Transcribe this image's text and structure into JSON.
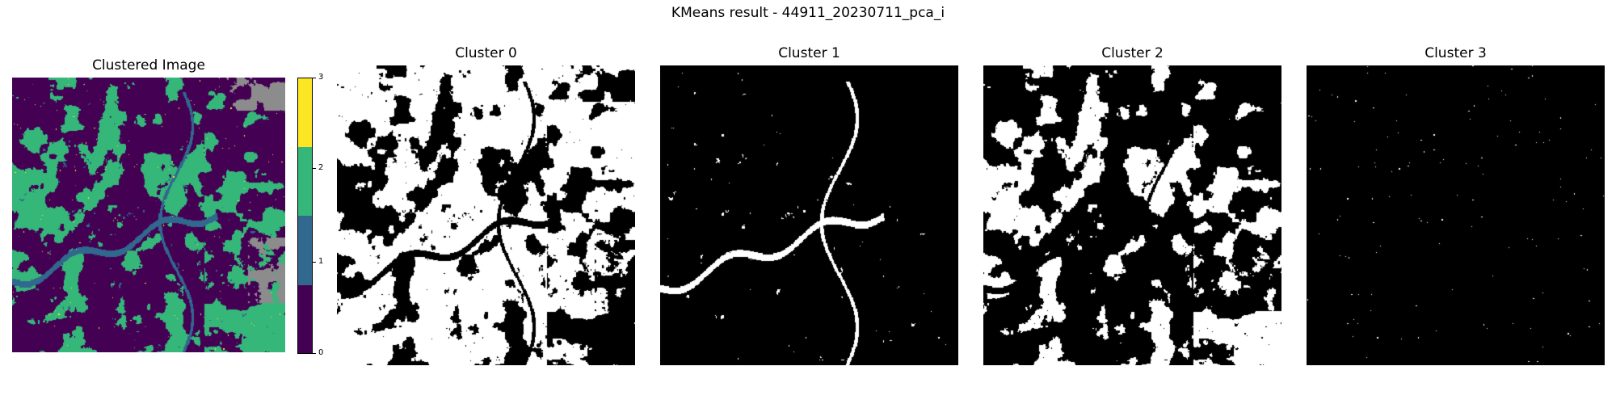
{
  "figure": {
    "suptitle": "KMeans result - 44911_20230711_pca_i"
  },
  "clustered": {
    "title": "Clustered Image",
    "palette": [
      "#440154",
      "#31688e",
      "#35b779",
      "#fde725"
    ],
    "nodata_color": "#8c8c8c",
    "legend": {
      "ticks": [
        "3",
        "2",
        "1",
        "0"
      ],
      "colors_top_to_bottom": [
        "#fde725",
        "#35b779",
        "#31688e",
        "#440154"
      ]
    }
  },
  "clusters": [
    {
      "title": "Cluster 0"
    },
    {
      "title": "Cluster 1"
    },
    {
      "title": "Cluster 2"
    },
    {
      "title": "Cluster 3"
    }
  ]
}
